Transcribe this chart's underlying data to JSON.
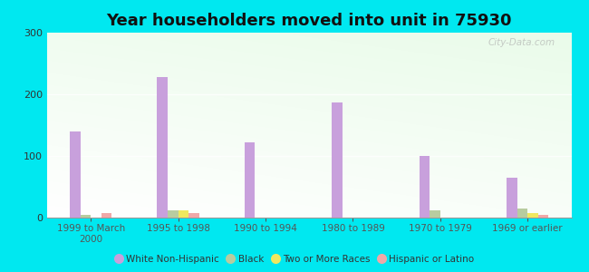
{
  "title": "Year householders moved into unit in 75930",
  "categories": [
    "1999 to March\n2000",
    "1995 to 1998",
    "1990 to 1994",
    "1980 to 1989",
    "1970 to 1979",
    "1969 or earlier"
  ],
  "series": {
    "White Non-Hispanic": [
      140,
      228,
      122,
      187,
      100,
      65
    ],
    "Black": [
      5,
      12,
      0,
      0,
      12,
      15
    ],
    "Two or More Races": [
      0,
      12,
      0,
      0,
      0,
      8
    ],
    "Hispanic or Latino": [
      8,
      8,
      0,
      0,
      0,
      5
    ]
  },
  "colors": {
    "White Non-Hispanic": "#c8a0dc",
    "Black": "#b8cca0",
    "Two or More Races": "#f0e860",
    "Hispanic or Latino": "#f0a8a8"
  },
  "ylim": [
    0,
    300
  ],
  "yticks": [
    0,
    100,
    200,
    300
  ],
  "outer_bg": "#00e8f0",
  "bar_width": 0.12,
  "watermark": "City-Data.com"
}
